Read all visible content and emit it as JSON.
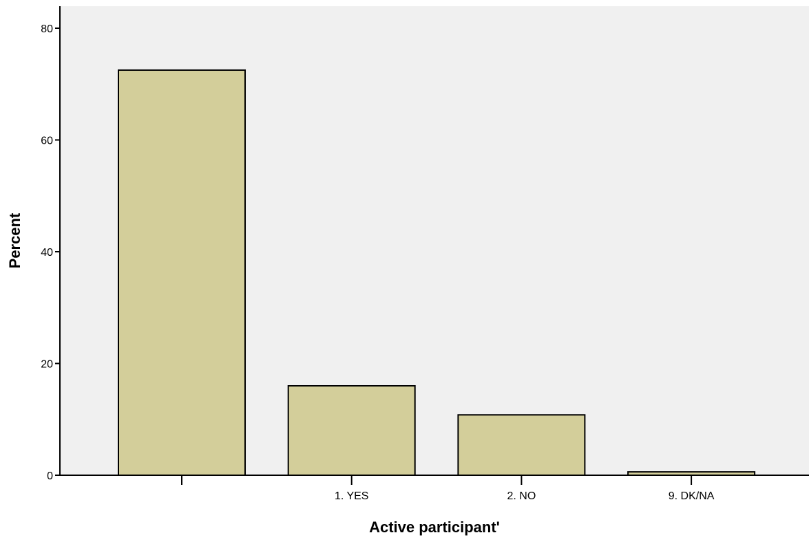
{
  "chart_data": {
    "type": "bar",
    "title": "",
    "xlabel": "Active participant'",
    "ylabel": "Percent",
    "categories": [
      "",
      "1. YES",
      "2. NO",
      "9. DK/NA"
    ],
    "values": [
      72.5,
      16.0,
      10.8,
      0.6
    ],
    "ylim": [
      0,
      80
    ],
    "yticks": [
      "0",
      "20",
      "40",
      "60",
      "80"
    ],
    "grid": false,
    "legend": "none",
    "colors": {
      "plot_bg": "#f0f0f0",
      "bar_fill": "#d3ce9a",
      "bar_stroke": "#000000"
    }
  }
}
